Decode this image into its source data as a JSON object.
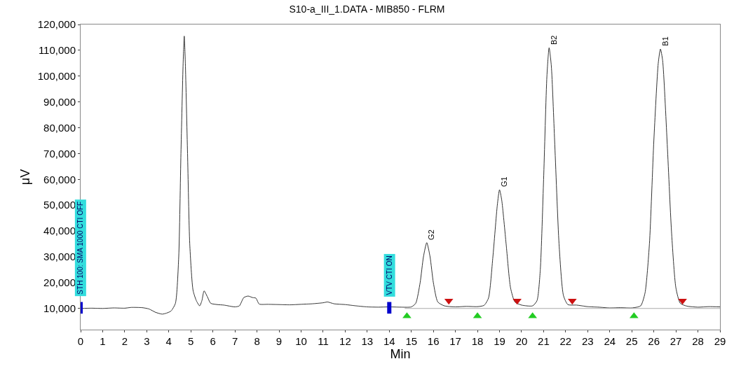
{
  "chart_data": {
    "type": "line",
    "title": "S10-a_III_1.DATA - MIB850 - FLRM",
    "xlabel": "Min",
    "ylabel": "μV",
    "xlim": [
      0,
      29
    ],
    "ylim": [
      1800,
      120000
    ],
    "xticks": [
      0,
      1,
      2,
      3,
      4,
      5,
      6,
      7,
      8,
      9,
      10,
      11,
      12,
      13,
      14,
      15,
      16,
      17,
      18,
      19,
      20,
      21,
      22,
      23,
      24,
      25,
      26,
      27,
      28,
      29
    ],
    "yticks": [
      {
        "value": 10000,
        "label": "10,000"
      },
      {
        "value": 20000,
        "label": "20,000"
      },
      {
        "value": 30000,
        "label": "30,000"
      },
      {
        "value": 40000,
        "label": "40,000"
      },
      {
        "value": 50000,
        "label": "50,000"
      },
      {
        "value": 60000,
        "label": "60,000"
      },
      {
        "value": 70000,
        "label": "70,000"
      },
      {
        "value": 80000,
        "label": "80,000"
      },
      {
        "value": 90000,
        "label": "90,000"
      },
      {
        "value": 100000,
        "label": "100,000"
      },
      {
        "value": 110000,
        "label": "110,000"
      },
      {
        "value": 120000,
        "label": "120,000"
      }
    ],
    "series": [
      {
        "color": "#333333",
        "x": [
          0,
          0.5,
          1,
          1.5,
          2,
          2.3,
          2.8,
          3.1,
          3.4,
          3.7,
          3.9,
          4.1,
          4.3,
          4.45,
          4.55,
          4.65,
          4.7,
          4.75,
          4.85,
          4.95,
          5.1,
          5.25,
          5.4,
          5.5,
          5.6,
          5.75,
          5.9,
          6.2,
          6.5,
          7,
          7.2,
          7.4,
          7.6,
          7.8,
          7.95,
          8.1,
          8.5,
          9,
          9.5,
          10,
          10.5,
          11,
          11.2,
          11.5,
          12,
          12.5,
          13,
          13.5,
          14,
          14.5,
          15,
          15.2,
          15.4,
          15.55,
          15.7,
          15.85,
          16,
          16.2,
          16.5,
          17,
          17.5,
          18,
          18.3,
          18.5,
          18.7,
          18.9,
          19,
          19.1,
          19.3,
          19.5,
          19.7,
          20,
          20.5,
          20.7,
          20.85,
          21,
          21.15,
          21.25,
          21.35,
          21.5,
          21.7,
          21.9,
          22.1,
          22.5,
          23,
          23.5,
          24,
          24.5,
          25,
          25.4,
          25.6,
          25.8,
          26,
          26.2,
          26.3,
          26.4,
          26.6,
          26.8,
          27,
          27.2,
          27.5,
          28,
          28.5,
          29
        ],
        "values": [
          10000,
          10100,
          10000,
          10200,
          10100,
          10400,
          10300,
          9800,
          8500,
          7800,
          8200,
          9000,
          12000,
          30000,
          70000,
          105000,
          115500,
          105000,
          70000,
          35000,
          17000,
          13000,
          11000,
          13000,
          16800,
          14500,
          12000,
          11500,
          11300,
          10600,
          11000,
          14200,
          14800,
          14200,
          14000,
          11700,
          11600,
          11500,
          11400,
          11600,
          11800,
          12200,
          12500,
          11800,
          11500,
          11000,
          10600,
          10500,
          10600,
          10500,
          10600,
          12000,
          20000,
          30000,
          35500,
          30000,
          20000,
          12500,
          11000,
          10600,
          10800,
          10700,
          11200,
          14000,
          30000,
          50000,
          56000,
          52000,
          35000,
          18000,
          12500,
          11300,
          11000,
          13000,
          25000,
          60000,
          100000,
          111000,
          104000,
          75000,
          35000,
          15000,
          11500,
          11300,
          10700,
          10500,
          10200,
          10300,
          10200,
          11000,
          16000,
          35000,
          75000,
          105000,
          110500,
          106000,
          75000,
          40000,
          18000,
          12000,
          10900,
          10500,
          10700,
          10600
        ]
      },
      {
        "type": "line",
        "color": "#aaaaaa",
        "x": [
          14.7,
          29
        ],
        "values": [
          10000,
          10000
        ]
      },
      {
        "type": "scatter",
        "marker": "triangle",
        "color": "#22cc22",
        "x": [
          14.8,
          18.0,
          20.5,
          25.1
        ],
        "values": [
          7000,
          7000,
          7000,
          7000
        ]
      },
      {
        "type": "scatter",
        "marker": "triangle-down",
        "color": "#cc1111",
        "x": [
          16.7,
          19.8,
          22.3,
          27.3
        ],
        "values": [
          13000,
          13000,
          13000,
          13000
        ]
      }
    ],
    "ref_lines": [
      {
        "axis": "x",
        "value": 0,
        "label": "STH 100: SMA 1000 CTI OFF",
        "color": "#0000cc"
      },
      {
        "axis": "x",
        "value": 14,
        "label": "VTV CTI ON",
        "color": "#0000cc"
      }
    ],
    "annotations": [
      {
        "text": "G2",
        "x": 15.7,
        "y": 35500
      },
      {
        "text": "G1",
        "x": 19.0,
        "y": 56000
      },
      {
        "text": "B2",
        "x": 21.25,
        "y": 111000
      },
      {
        "text": "B1",
        "x": 26.3,
        "y": 110500
      }
    ]
  }
}
